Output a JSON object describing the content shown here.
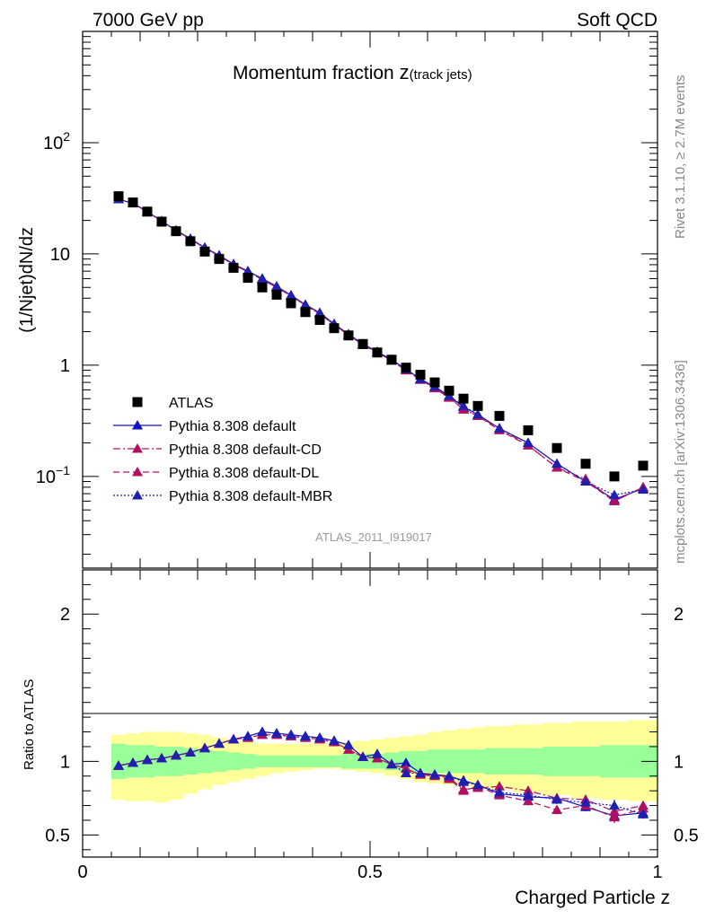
{
  "header": {
    "left_label": "7000 GeV pp",
    "right_label": "Soft QCD",
    "right_side_text_1": "Rivet 3.1.10, ≥ 2.7M events",
    "right_side_text_2": "mcplots.cern.ch [arXiv:1306.3436]",
    "analysis_id": "ATLAS_2011_I919017"
  },
  "chart_data": [
    {
      "type": "scatter",
      "title": "Momentum fraction",
      "title_suffix": "z",
      "title_sub": "(track jets)",
      "ylabel": "(1/Njet)dN/dz",
      "xlim": [
        0,
        1
      ],
      "ylim": [
        0.015,
        1000
      ],
      "yscale": "log",
      "y_ticks": [
        {
          "value": 0.1,
          "label": "10",
          "sup": "−1"
        },
        {
          "value": 1,
          "label": "1",
          "sup": ""
        },
        {
          "value": 10,
          "label": "10",
          "sup": ""
        },
        {
          "value": 100,
          "label": "10",
          "sup": "2"
        }
      ],
      "x": [
        0.0625,
        0.0875,
        0.1125,
        0.1375,
        0.1625,
        0.1875,
        0.2125,
        0.2375,
        0.2625,
        0.2875,
        0.3125,
        0.3375,
        0.3625,
        0.3875,
        0.4125,
        0.4375,
        0.4625,
        0.4875,
        0.5125,
        0.5375,
        0.5625,
        0.5875,
        0.6125,
        0.6375,
        0.6625,
        0.6875,
        0.725,
        0.775,
        0.825,
        0.875,
        0.925,
        0.975
      ],
      "legend_placement": "lower-left",
      "series": [
        {
          "name": "ATLAS",
          "marker": "square",
          "line": "none",
          "color": "#000000",
          "values": [
            33,
            29,
            24,
            19.5,
            16,
            13,
            10.5,
            9,
            7.5,
            6.1,
            5,
            4.3,
            3.6,
            3.0,
            2.55,
            2.15,
            1.85,
            1.55,
            1.3,
            1.12,
            0.95,
            0.82,
            0.7,
            0.59,
            0.5,
            0.43,
            0.35,
            0.26,
            0.18,
            0.13,
            0.1,
            0.125
          ]
        },
        {
          "name": "Pythia 8.308 default",
          "marker": "triangle",
          "line": "solid",
          "color": "#1010c8",
          "values": [
            31,
            28.5,
            24,
            19.7,
            16.3,
            13.7,
            11.4,
            9.7,
            8.1,
            7.0,
            6.0,
            5.1,
            4.25,
            3.5,
            2.95,
            2.35,
            1.9,
            1.55,
            1.32,
            1.12,
            0.92,
            0.75,
            0.64,
            0.53,
            0.42,
            0.36,
            0.27,
            0.2,
            0.13,
            0.09,
            0.062,
            0.078
          ]
        },
        {
          "name": "Pythia 8.308 default-CD",
          "marker": "triangle",
          "line": "dashdot",
          "color": "#b01060",
          "values": [
            31,
            28.5,
            24,
            19.7,
            16.2,
            13.6,
            11.3,
            9.6,
            8.0,
            6.9,
            5.9,
            5.0,
            4.2,
            3.45,
            2.9,
            2.3,
            1.88,
            1.52,
            1.3,
            1.1,
            0.9,
            0.74,
            0.63,
            0.52,
            0.4,
            0.35,
            0.27,
            0.19,
            0.12,
            0.095,
            0.06,
            0.08
          ]
        },
        {
          "name": "Pythia 8.308 default-DL",
          "marker": "triangle",
          "line": "dashed",
          "color": "#b01060",
          "values": [
            31,
            28.5,
            24,
            19.7,
            16.2,
            13.6,
            11.3,
            9.6,
            8.0,
            6.9,
            5.9,
            5.0,
            4.2,
            3.45,
            2.9,
            2.3,
            1.88,
            1.52,
            1.3,
            1.1,
            0.9,
            0.74,
            0.62,
            0.51,
            0.4,
            0.35,
            0.26,
            0.19,
            0.12,
            0.09,
            0.06,
            0.08
          ]
        },
        {
          "name": "Pythia 8.308 default-MBR",
          "marker": "triangle",
          "line": "dotted",
          "color": "#2020b0",
          "values": [
            31,
            28.5,
            24,
            19.7,
            16.3,
            13.7,
            11.4,
            9.7,
            8.1,
            7.0,
            6.0,
            5.1,
            4.25,
            3.5,
            2.95,
            2.35,
            1.9,
            1.55,
            1.32,
            1.12,
            0.92,
            0.75,
            0.64,
            0.53,
            0.43,
            0.36,
            0.27,
            0.2,
            0.13,
            0.09,
            0.068,
            0.076
          ]
        }
      ]
    },
    {
      "type": "scatter",
      "title": "",
      "ylabel": "Ratio to ATLAS",
      "xlabel": "Charged Particle z",
      "xlim": [
        0,
        1
      ],
      "ylim": [
        0.35,
        2.3
      ],
      "x_ticks": [
        {
          "value": 0,
          "label": "0"
        },
        {
          "value": 0.5,
          "label": "0.5"
        },
        {
          "value": 1,
          "label": "1"
        }
      ],
      "y_ticks": [
        {
          "value": 0.5,
          "label": "0.5"
        },
        {
          "value": 1,
          "label": "1"
        },
        {
          "value": 2,
          "label": "2"
        }
      ],
      "reference_line": 1,
      "x": [
        0.0625,
        0.0875,
        0.1125,
        0.1375,
        0.1625,
        0.1875,
        0.2125,
        0.2375,
        0.2625,
        0.2875,
        0.3125,
        0.3375,
        0.3625,
        0.3875,
        0.4125,
        0.4375,
        0.4625,
        0.4875,
        0.5125,
        0.5375,
        0.5625,
        0.5875,
        0.6125,
        0.6375,
        0.6625,
        0.6875,
        0.725,
        0.775,
        0.825,
        0.875,
        0.925,
        0.975
      ],
      "bin_edges": [
        0.05,
        0.075,
        0.1,
        0.125,
        0.15,
        0.175,
        0.2,
        0.225,
        0.25,
        0.275,
        0.3,
        0.325,
        0.35,
        0.375,
        0.4,
        0.425,
        0.45,
        0.475,
        0.5,
        0.525,
        0.55,
        0.575,
        0.6,
        0.625,
        0.65,
        0.675,
        0.7,
        0.75,
        0.8,
        0.85,
        0.9,
        0.95,
        1.0
      ],
      "bands": [
        {
          "name": "stat uncertainty",
          "color": "#99ff99",
          "lower": [
            0.88,
            0.89,
            0.89,
            0.9,
            0.9,
            0.91,
            0.92,
            0.93,
            0.94,
            0.95,
            0.96,
            0.96,
            0.96,
            0.96,
            0.96,
            0.96,
            0.95,
            0.95,
            0.95,
            0.94,
            0.93,
            0.93,
            0.92,
            0.92,
            0.92,
            0.92,
            0.91,
            0.91,
            0.9,
            0.9,
            0.89,
            0.89
          ],
          "upper": [
            1.12,
            1.11,
            1.11,
            1.1,
            1.1,
            1.09,
            1.08,
            1.07,
            1.06,
            1.05,
            1.04,
            1.04,
            1.04,
            1.04,
            1.04,
            1.04,
            1.05,
            1.05,
            1.05,
            1.06,
            1.07,
            1.07,
            1.08,
            1.08,
            1.08,
            1.08,
            1.09,
            1.09,
            1.1,
            1.1,
            1.11,
            1.11
          ]
        },
        {
          "name": "total uncertainty",
          "color": "#ffff99",
          "lower": [
            0.74,
            0.73,
            0.73,
            0.72,
            0.74,
            0.78,
            0.81,
            0.84,
            0.86,
            0.88,
            0.9,
            0.92,
            0.93,
            0.94,
            0.95,
            0.95,
            0.94,
            0.93,
            0.92,
            0.9,
            0.88,
            0.86,
            0.85,
            0.84,
            0.83,
            0.82,
            0.81,
            0.79,
            0.77,
            0.75,
            0.74,
            0.73
          ],
          "upper": [
            1.18,
            1.19,
            1.2,
            1.2,
            1.2,
            1.19,
            1.18,
            1.16,
            1.14,
            1.13,
            1.12,
            1.12,
            1.12,
            1.12,
            1.12,
            1.12,
            1.13,
            1.14,
            1.15,
            1.16,
            1.17,
            1.18,
            1.2,
            1.21,
            1.22,
            1.23,
            1.24,
            1.25,
            1.26,
            1.27,
            1.27,
            1.28
          ]
        }
      ],
      "series": [
        {
          "name": "Pythia 8.308 default",
          "marker": "triangle",
          "line": "solid",
          "color": "#1010c8",
          "values": [
            0.97,
            0.99,
            1.01,
            1.02,
            1.04,
            1.06,
            1.09,
            1.12,
            1.15,
            1.17,
            1.2,
            1.19,
            1.18,
            1.17,
            1.16,
            1.14,
            1.11,
            1.03,
            1.05,
            0.98,
            0.99,
            0.92,
            0.91,
            0.9,
            0.87,
            0.84,
            0.78,
            0.76,
            0.75,
            0.69,
            0.63,
            0.65
          ],
          "errors": [
            0.02,
            0.02,
            0.02,
            0.02,
            0.02,
            0.02,
            0.02,
            0.02,
            0.02,
            0.02,
            0.02,
            0.02,
            0.02,
            0.02,
            0.02,
            0.02,
            0.02,
            0.02,
            0.02,
            0.02,
            0.02,
            0.02,
            0.02,
            0.02,
            0.02,
            0.02,
            0.02,
            0.03,
            0.03,
            0.03,
            0.04,
            0.03
          ]
        },
        {
          "name": "Pythia 8.308 default-CD",
          "marker": "triangle",
          "line": "dashdot",
          "color": "#b01060",
          "values": [
            0.97,
            0.99,
            1.01,
            1.02,
            1.04,
            1.06,
            1.09,
            1.12,
            1.15,
            1.16,
            1.18,
            1.18,
            1.17,
            1.16,
            1.15,
            1.13,
            1.08,
            1.03,
            1.02,
            0.98,
            0.95,
            0.91,
            0.91,
            0.89,
            0.81,
            0.82,
            0.83,
            0.8,
            0.75,
            0.74,
            0.66,
            0.7
          ],
          "errors": [
            0.02,
            0.02,
            0.02,
            0.02,
            0.02,
            0.02,
            0.02,
            0.02,
            0.02,
            0.02,
            0.02,
            0.02,
            0.02,
            0.02,
            0.02,
            0.02,
            0.02,
            0.02,
            0.02,
            0.02,
            0.02,
            0.02,
            0.02,
            0.02,
            0.02,
            0.02,
            0.02,
            0.03,
            0.03,
            0.03,
            0.04,
            0.03
          ]
        },
        {
          "name": "Pythia 8.308 default-DL",
          "marker": "triangle",
          "line": "dashed",
          "color": "#b01060",
          "values": [
            0.97,
            0.99,
            1.01,
            1.02,
            1.04,
            1.06,
            1.09,
            1.12,
            1.15,
            1.16,
            1.18,
            1.18,
            1.17,
            1.16,
            1.15,
            1.13,
            1.08,
            1.03,
            1.02,
            0.98,
            0.95,
            0.91,
            0.9,
            0.88,
            0.8,
            0.83,
            0.77,
            0.73,
            0.67,
            0.7,
            0.62,
            0.68
          ],
          "errors": [
            0.02,
            0.02,
            0.02,
            0.02,
            0.02,
            0.02,
            0.02,
            0.02,
            0.02,
            0.02,
            0.02,
            0.02,
            0.02,
            0.02,
            0.02,
            0.02,
            0.02,
            0.02,
            0.02,
            0.02,
            0.02,
            0.02,
            0.02,
            0.02,
            0.02,
            0.02,
            0.02,
            0.03,
            0.03,
            0.03,
            0.04,
            0.03
          ]
        },
        {
          "name": "Pythia 8.308 default-MBR",
          "marker": "triangle",
          "line": "dotted",
          "color": "#2020b0",
          "values": [
            0.97,
            0.99,
            1.01,
            1.02,
            1.04,
            1.06,
            1.09,
            1.12,
            1.15,
            1.17,
            1.2,
            1.19,
            1.18,
            1.17,
            1.16,
            1.14,
            1.11,
            1.03,
            1.05,
            0.98,
            0.92,
            0.92,
            0.91,
            0.9,
            0.86,
            0.84,
            0.79,
            0.77,
            0.74,
            0.72,
            0.7,
            0.64
          ],
          "errors": [
            0.02,
            0.02,
            0.02,
            0.02,
            0.02,
            0.02,
            0.02,
            0.02,
            0.02,
            0.02,
            0.02,
            0.02,
            0.02,
            0.02,
            0.02,
            0.02,
            0.02,
            0.02,
            0.02,
            0.02,
            0.02,
            0.02,
            0.02,
            0.02,
            0.02,
            0.02,
            0.02,
            0.03,
            0.03,
            0.03,
            0.04,
            0.03
          ]
        }
      ]
    }
  ]
}
